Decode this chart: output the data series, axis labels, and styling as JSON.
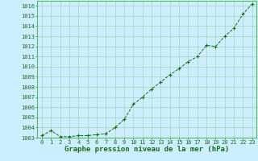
{
  "x": [
    0,
    1,
    2,
    3,
    4,
    5,
    6,
    7,
    8,
    9,
    10,
    11,
    12,
    13,
    14,
    15,
    16,
    17,
    18,
    19,
    20,
    21,
    22,
    23
  ],
  "y": [
    1003.2,
    1003.7,
    1003.1,
    1003.1,
    1003.2,
    1003.2,
    1003.3,
    1003.4,
    1004.0,
    1004.8,
    1006.3,
    1007.0,
    1007.8,
    1008.5,
    1009.2,
    1009.8,
    1010.5,
    1011.0,
    1012.1,
    1012.0,
    1013.0,
    1013.8,
    1015.2,
    1016.2
  ],
  "line_color": "#1a6b1a",
  "marker": "D",
  "marker_size": 2.0,
  "bg_color": "#cceeff",
  "grid_color": "#88cc88",
  "xlabel": "Graphe pression niveau de la mer (hPa)",
  "xlabel_fontsize": 6.5,
  "xlabel_color": "#1a6b1a",
  "ylim": [
    1003,
    1016.5
  ],
  "xlim": [
    -0.5,
    23.5
  ],
  "ytick_start": 1003,
  "ytick_end": 1016,
  "ytick_step": 1,
  "xtick_labels": [
    "0",
    "1",
    "2",
    "3",
    "4",
    "5",
    "6",
    "7",
    "8",
    "9",
    "10",
    "11",
    "12",
    "13",
    "14",
    "15",
    "16",
    "17",
    "18",
    "19",
    "20",
    "21",
    "22",
    "23"
  ],
  "tick_fontsize": 5.0,
  "tick_color": "#1a6b1a",
  "spine_color": "#5cb85c"
}
